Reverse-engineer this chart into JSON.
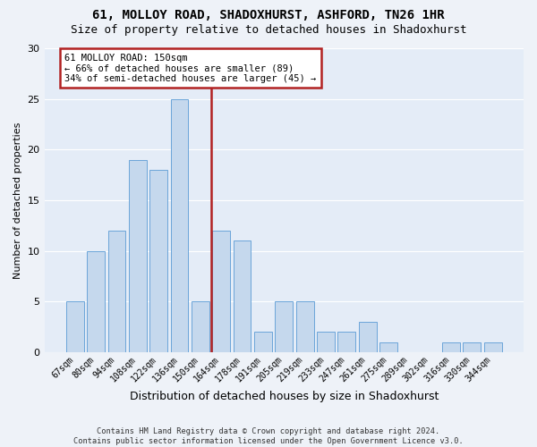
{
  "title1": "61, MOLLOY ROAD, SHADOXHURST, ASHFORD, TN26 1HR",
  "title2": "Size of property relative to detached houses in Shadoxhurst",
  "xlabel": "Distribution of detached houses by size in Shadoxhurst",
  "ylabel": "Number of detached properties",
  "categories": [
    "67sqm",
    "80sqm",
    "94sqm",
    "108sqm",
    "122sqm",
    "136sqm",
    "150sqm",
    "164sqm",
    "178sqm",
    "191sqm",
    "205sqm",
    "219sqm",
    "233sqm",
    "247sqm",
    "261sqm",
    "275sqm",
    "289sqm",
    "302sqm",
    "316sqm",
    "330sqm",
    "344sqm"
  ],
  "values": [
    5,
    10,
    12,
    19,
    18,
    25,
    5,
    12,
    11,
    2,
    5,
    5,
    2,
    2,
    3,
    1,
    0,
    0,
    1,
    1,
    1
  ],
  "bar_color": "#c5d8ed",
  "bar_edge_color": "#5b9bd5",
  "highlight_index": 6,
  "highlight_line_color": "#b22222",
  "annotation_text": "61 MOLLOY ROAD: 150sqm\n← 66% of detached houses are smaller (89)\n34% of semi-detached houses are larger (45) →",
  "annotation_box_color": "#ffffff",
  "annotation_box_edge_color": "#b22222",
  "ylim": [
    0,
    30
  ],
  "yticks": [
    0,
    5,
    10,
    15,
    20,
    25,
    30
  ],
  "footnote": "Contains HM Land Registry data © Crown copyright and database right 2024.\nContains public sector information licensed under the Open Government Licence v3.0.",
  "bg_color": "#eef2f8",
  "plot_bg_color": "#e4ecf7",
  "grid_color": "#ffffff",
  "title_fontsize": 10,
  "subtitle_fontsize": 9,
  "bar_width": 0.85
}
